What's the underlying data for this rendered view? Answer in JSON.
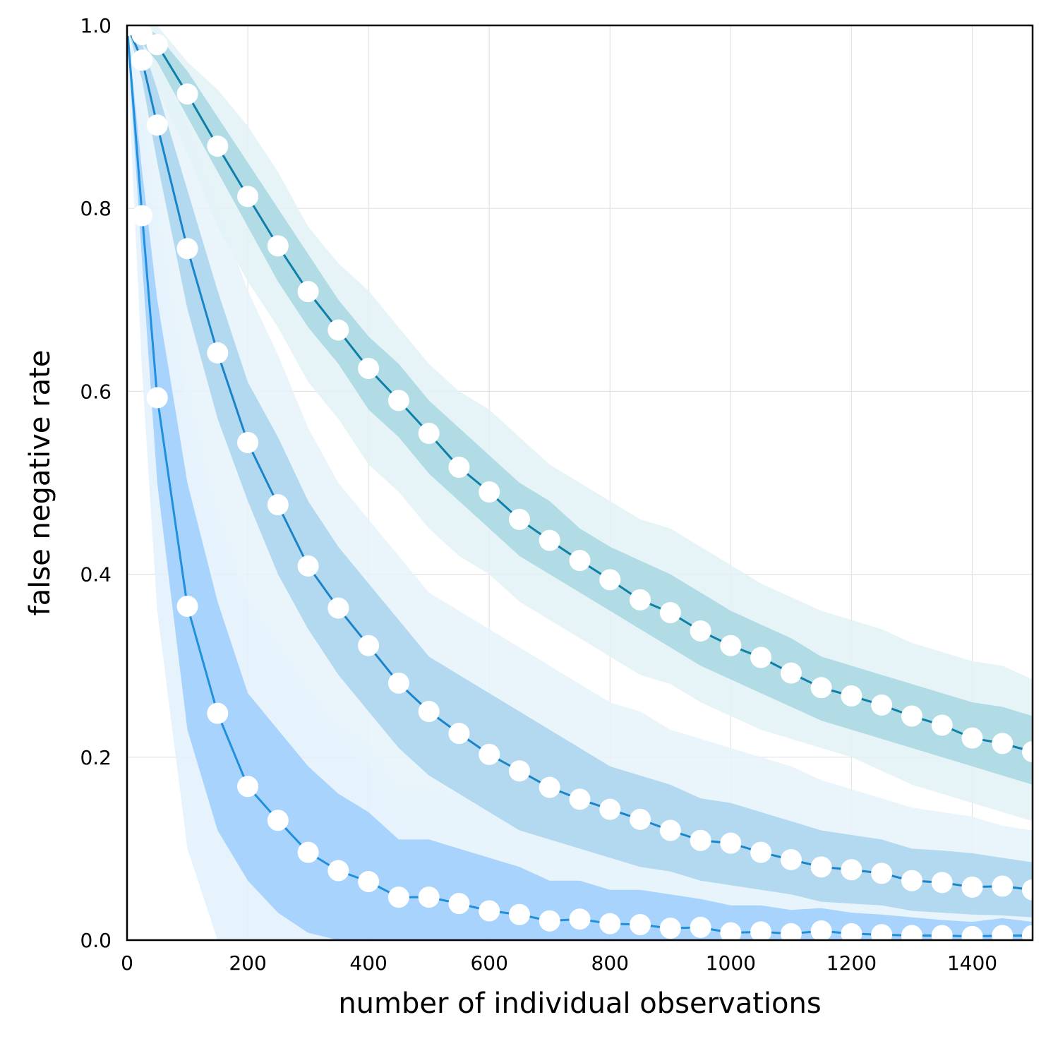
{
  "chart_data": {
    "type": "line",
    "title": "",
    "xlabel": "number of individual observations",
    "ylabel": "false negative rate",
    "xlim": [
      0,
      1500
    ],
    "ylim": [
      0,
      1.0
    ],
    "xticks": [
      0,
      200,
      400,
      600,
      800,
      1000,
      1200,
      1400
    ],
    "xtick_labels": [
      "0",
      "200",
      "400",
      "600",
      "800",
      "1000",
      "1200",
      "1400"
    ],
    "yticks": [
      0.0,
      0.2,
      0.4,
      0.6,
      0.8,
      1.0
    ],
    "ytick_labels": [
      "0.0",
      "0.2",
      "0.4",
      "0.6",
      "0.8",
      "1.0"
    ],
    "grid": true,
    "legend": "none",
    "x": [
      0,
      25,
      50,
      100,
      150,
      200,
      250,
      300,
      350,
      400,
      450,
      500,
      550,
      600,
      650,
      700,
      750,
      800,
      850,
      900,
      950,
      1000,
      1050,
      1100,
      1150,
      1200,
      1250,
      1300,
      1350,
      1400,
      1450,
      1500
    ],
    "series": [
      {
        "color": "#1f8fde",
        "band_inner_color": "#9ccdfb",
        "band_outer_color": "#e3f1fc",
        "values": [
          1.0,
          0.792,
          0.593,
          0.365,
          0.248,
          0.168,
          0.131,
          0.096,
          0.076,
          0.064,
          0.047,
          0.047,
          0.04,
          0.032,
          0.028,
          0.021,
          0.023,
          0.018,
          0.017,
          0.013,
          0.014,
          0.008,
          0.009,
          0.007,
          0.01,
          0.007,
          0.006,
          0.005,
          0.005,
          0.004,
          0.005,
          0.005
        ],
        "inner_low": [
          0.99,
          0.74,
          0.5,
          0.23,
          0.12,
          0.065,
          0.03,
          0.008,
          0.0,
          0.0,
          0.0,
          0.0,
          0.0,
          0.0,
          0.0,
          0.0,
          0.0,
          0.0,
          0.0,
          0.0,
          0.0,
          0.0,
          0.0,
          0.0,
          0.0,
          0.0,
          0.0,
          0.0,
          0.0,
          0.0,
          0.0,
          0.0
        ],
        "inner_high": [
          1.0,
          0.84,
          0.7,
          0.5,
          0.37,
          0.27,
          0.23,
          0.19,
          0.16,
          0.14,
          0.11,
          0.11,
          0.1,
          0.09,
          0.08,
          0.065,
          0.065,
          0.055,
          0.055,
          0.05,
          0.045,
          0.038,
          0.038,
          0.033,
          0.035,
          0.03,
          0.028,
          0.025,
          0.022,
          0.02,
          0.024,
          0.02
        ],
        "outer_low": [
          0.97,
          0.62,
          0.36,
          0.1,
          0.0,
          0.0,
          0.0,
          0.0,
          0.0,
          0.0,
          0.0,
          0.0,
          0.0,
          0.0,
          0.0,
          0.0,
          0.0,
          0.0,
          0.0,
          0.0,
          0.0,
          0.0,
          0.0,
          0.0,
          0.0,
          0.0,
          0.0,
          0.0,
          0.0,
          0.0,
          0.0,
          0.0
        ],
        "outer_high": [
          1.0,
          0.93,
          0.82,
          0.62,
          0.48,
          0.38,
          0.33,
          0.28,
          0.24,
          0.22,
          0.17,
          0.17,
          0.16,
          0.14,
          0.12,
          0.11,
          0.11,
          0.1,
          0.09,
          0.085,
          0.08,
          0.07,
          0.065,
          0.06,
          0.06,
          0.055,
          0.05,
          0.045,
          0.042,
          0.04,
          0.04,
          0.04
        ]
      },
      {
        "color": "#1a84c8",
        "band_inner_color": "#a9d3ee",
        "band_outer_color": "#e6f3fa",
        "values": [
          1.0,
          0.962,
          0.891,
          0.756,
          0.642,
          0.544,
          0.476,
          0.409,
          0.363,
          0.322,
          0.281,
          0.25,
          0.226,
          0.203,
          0.185,
          0.167,
          0.154,
          0.143,
          0.132,
          0.12,
          0.109,
          0.106,
          0.096,
          0.088,
          0.08,
          0.077,
          0.073,
          0.065,
          0.063,
          0.058,
          0.059,
          0.055
        ],
        "inner_low": [
          1.0,
          0.94,
          0.85,
          0.69,
          0.57,
          0.48,
          0.4,
          0.34,
          0.29,
          0.25,
          0.21,
          0.18,
          0.16,
          0.14,
          0.12,
          0.11,
          0.1,
          0.09,
          0.08,
          0.075,
          0.065,
          0.06,
          0.055,
          0.05,
          0.042,
          0.04,
          0.038,
          0.032,
          0.03,
          0.028,
          0.027,
          0.025
        ],
        "inner_high": [
          1.0,
          0.98,
          0.93,
          0.82,
          0.71,
          0.61,
          0.55,
          0.48,
          0.43,
          0.39,
          0.35,
          0.31,
          0.29,
          0.27,
          0.25,
          0.23,
          0.21,
          0.19,
          0.18,
          0.17,
          0.155,
          0.15,
          0.14,
          0.13,
          0.12,
          0.115,
          0.11,
          0.1,
          0.098,
          0.095,
          0.09,
          0.085
        ],
        "outer_low": [
          0.99,
          0.9,
          0.77,
          0.58,
          0.45,
          0.37,
          0.32,
          0.27,
          0.22,
          0.19,
          0.13,
          0.11,
          0.09,
          0.08,
          0.06,
          0.05,
          0.045,
          0.04,
          0.035,
          0.03,
          0.025,
          0.02,
          0.018,
          0.016,
          0.014,
          0.012,
          0.01,
          0.008,
          0.007,
          0.006,
          0.005,
          0.005
        ],
        "outer_high": [
          1.0,
          1.0,
          0.97,
          0.89,
          0.8,
          0.71,
          0.64,
          0.56,
          0.5,
          0.46,
          0.42,
          0.38,
          0.36,
          0.34,
          0.32,
          0.3,
          0.28,
          0.26,
          0.25,
          0.23,
          0.22,
          0.21,
          0.2,
          0.19,
          0.175,
          0.165,
          0.155,
          0.145,
          0.14,
          0.135,
          0.125,
          0.12
        ]
      },
      {
        "color": "#0e7fa6",
        "band_inner_color": "#a7d6e2",
        "band_outer_color": "#e3f2f6",
        "values": [
          1.0,
          0.99,
          0.979,
          0.925,
          0.868,
          0.813,
          0.759,
          0.709,
          0.667,
          0.625,
          0.59,
          0.554,
          0.517,
          0.49,
          0.46,
          0.437,
          0.415,
          0.394,
          0.372,
          0.358,
          0.338,
          0.322,
          0.309,
          0.292,
          0.276,
          0.267,
          0.257,
          0.245,
          0.235,
          0.221,
          0.215,
          0.206
        ],
        "inner_low": [
          1.0,
          0.98,
          0.96,
          0.9,
          0.84,
          0.78,
          0.72,
          0.67,
          0.63,
          0.58,
          0.55,
          0.51,
          0.48,
          0.45,
          0.42,
          0.4,
          0.38,
          0.36,
          0.34,
          0.32,
          0.3,
          0.285,
          0.27,
          0.255,
          0.24,
          0.23,
          0.22,
          0.21,
          0.2,
          0.19,
          0.18,
          0.17
        ],
        "inner_high": [
          1.0,
          1.0,
          0.99,
          0.95,
          0.9,
          0.85,
          0.8,
          0.75,
          0.7,
          0.66,
          0.63,
          0.59,
          0.56,
          0.53,
          0.5,
          0.48,
          0.45,
          0.43,
          0.415,
          0.4,
          0.38,
          0.36,
          0.345,
          0.33,
          0.31,
          0.3,
          0.29,
          0.28,
          0.27,
          0.26,
          0.255,
          0.245
        ],
        "outer_low": [
          1.0,
          0.97,
          0.93,
          0.86,
          0.78,
          0.72,
          0.67,
          0.61,
          0.57,
          0.52,
          0.49,
          0.45,
          0.42,
          0.4,
          0.37,
          0.35,
          0.33,
          0.31,
          0.29,
          0.28,
          0.26,
          0.245,
          0.23,
          0.22,
          0.21,
          0.2,
          0.185,
          0.17,
          0.16,
          0.15,
          0.14,
          0.13
        ],
        "outer_high": [
          1.0,
          1.0,
          1.0,
          0.96,
          0.93,
          0.89,
          0.84,
          0.78,
          0.74,
          0.71,
          0.67,
          0.63,
          0.6,
          0.58,
          0.55,
          0.52,
          0.5,
          0.48,
          0.46,
          0.45,
          0.43,
          0.41,
          0.39,
          0.375,
          0.36,
          0.35,
          0.34,
          0.325,
          0.315,
          0.305,
          0.3,
          0.285
        ]
      }
    ]
  }
}
